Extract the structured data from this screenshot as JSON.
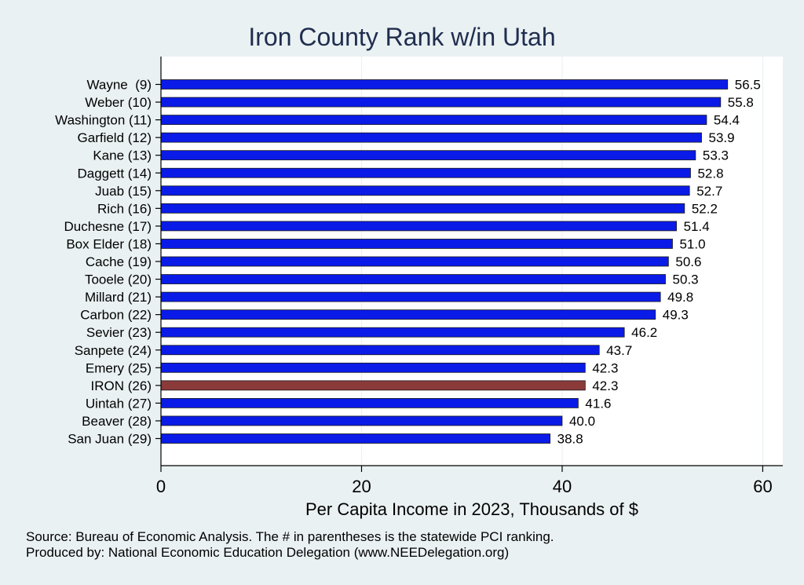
{
  "chart_data": {
    "type": "bar",
    "orientation": "horizontal",
    "title": "Iron County Rank w/in Utah",
    "xlabel": "Per Capita Income in 2023, Thousands of $",
    "ylabel": "",
    "xlim": [
      0,
      62
    ],
    "xticks": [
      0,
      20,
      40,
      60
    ],
    "grid": true,
    "categories": [
      "Wayne  (9)",
      "Weber (10)",
      "Washington (11)",
      "Garfield (12)",
      "Kane (13)",
      "Daggett (14)",
      "Juab (15)",
      "Rich (16)",
      "Duchesne (17)",
      "Box Elder (18)",
      "Cache (19)",
      "Tooele (20)",
      "Millard (21)",
      "Carbon (22)",
      "Sevier (23)",
      "Sanpete (24)",
      "Emery (25)",
      "IRON (26)",
      "Uintah (27)",
      "Beaver (28)",
      "San Juan (29)"
    ],
    "values": [
      56.5,
      55.8,
      54.4,
      53.9,
      53.3,
      52.8,
      52.7,
      52.2,
      51.4,
      51.0,
      50.6,
      50.3,
      49.8,
      49.3,
      46.2,
      43.7,
      42.3,
      42.3,
      41.6,
      40.0,
      38.8
    ],
    "value_labels": [
      "56.5",
      "55.8",
      "54.4",
      "53.9",
      "53.3",
      "52.8",
      "52.7",
      "52.2",
      "51.4",
      "51.0",
      "50.6",
      "50.3",
      "49.8",
      "49.3",
      "46.2",
      "43.7",
      "42.3",
      "42.3",
      "41.6",
      "40.0",
      "38.8"
    ],
    "highlight_index": 17,
    "colors": {
      "bar": "#0a1be8",
      "highlight": "#8b3a3a",
      "background": "#eaf1f3",
      "plot_background": "#ffffff",
      "gridline": "#eaf1f3",
      "title": "#1f2d4e"
    }
  },
  "notes": [
    "Source: Bureau of Economic Analysis. The # in parentheses is the statewide PCI ranking.",
    "Produced by: National Economic Education Delegation (www.NEEDelegation.org)"
  ]
}
